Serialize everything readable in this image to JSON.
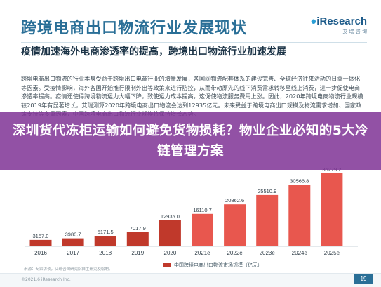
{
  "header": {
    "title": "跨境电商出口物流行业发展现状",
    "brand_name": "iResearch",
    "brand_sub": "艾 瑞 咨 询"
  },
  "subtitle": "疫情加速海外电商渗透率的提高，跨境出口物流行业加速发展",
  "paragraph": "跨境电商出口物流的行业本身受益于跨境出口电商行业的增量发展，各国间物流配套体系的建设完善、全球经济往来活动的日益一体化等因素。受疫情影响，海外各国开始推行限制外出等政策来进行防控，从而带动原先的线下消费需求转移至线上消费，进一步促使电商渗透率提高。疫情还使得跨境物流运力大幅下降，致使运力成本提高，这促使物流服务费用上涨。因此，2020年跨境电商物流行业规模较2019年有显著增长，艾瑞测算2020年跨境电商出口物流会达到12935亿元。未来受益于跨境电商出口规模及物流需求增加、国家政策支持等多重因素，中国跨境电商出口物流行业规模将保持增长态势。",
  "banner": {
    "text": "深圳货代冻柜运输如何避免货物损耗？物业企业必知的5大冷链管理方案"
  },
  "chart_data": {
    "type": "bar",
    "title": "",
    "categories": [
      "2016",
      "2017",
      "2018",
      "2019",
      "2020",
      "2021e",
      "2022e",
      "2023e",
      "2024e",
      "2025e"
    ],
    "series": [
      {
        "name": "中国跨境电商出口物流市场规模（亿元）",
        "values": [
          3157.0,
          3980.7,
          5171.5,
          7017.9,
          12935.0,
          16110.7,
          20862.6,
          25510.9,
          30566.8,
          36279.2
        ],
        "labels": [
          "3157.0",
          "3980.7",
          "5171.5",
          "7017.9",
          "12935.0",
          "16110.7",
          "20862.6",
          "25510.9",
          "30566.8",
          "36279.2"
        ]
      }
    ],
    "xlabel": "",
    "ylabel": "",
    "ylim": [
      0,
      36279.2
    ],
    "grid": false,
    "legend": "bottom-center",
    "colors": {
      "historical": "#c0392b",
      "forecast": "#e8574e"
    }
  },
  "source_note": "来源：专家访谈，艾瑞咨询研究院自主研究及绘制。",
  "footer": {
    "copyright": "©2021.6 iResearch Inc.",
    "page": "19"
  }
}
